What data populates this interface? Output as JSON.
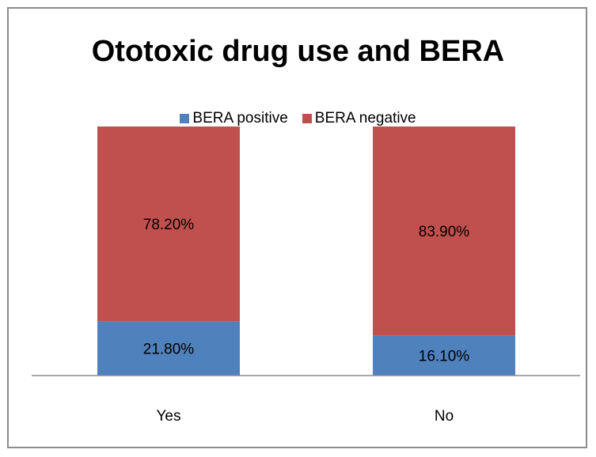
{
  "chart_data": {
    "type": "bar",
    "stacked": true,
    "title": "Ototoxic drug use and BERA",
    "categories": [
      "Yes",
      "No"
    ],
    "series": [
      {
        "name": "BERA positive",
        "values": [
          21.8,
          16.1
        ],
        "labels": [
          "21.80%",
          "16.10%"
        ],
        "color": "#4f81bd"
      },
      {
        "name": "BERA negative",
        "values": [
          78.2,
          83.9
        ],
        "labels": [
          "78.20%",
          "83.90%"
        ],
        "color": "#c0504d"
      }
    ],
    "ylim": [
      0,
      100
    ],
    "xlabel": "",
    "ylabel": "",
    "legend": "top",
    "grid": false
  }
}
